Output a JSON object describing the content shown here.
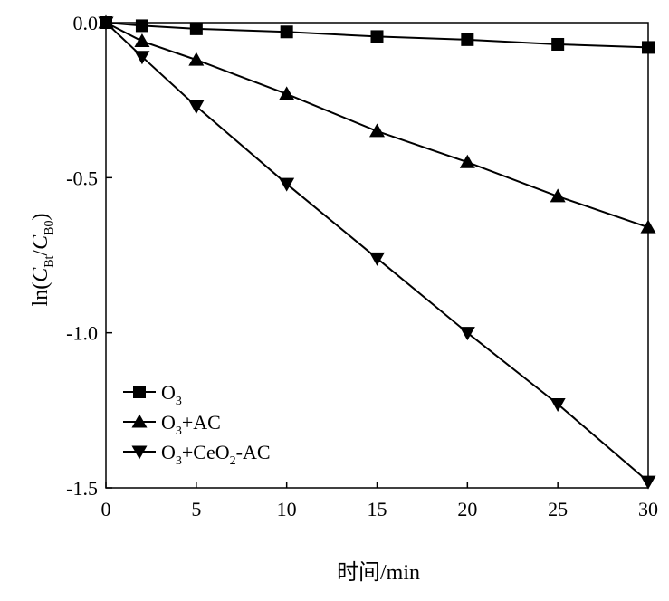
{
  "chart_data": {
    "type": "line",
    "xlabel": "时间/min",
    "ylabel": {
      "prefix": "ln(",
      "num_var": "C",
      "num_sub": "Bt",
      "slash": "/",
      "den_var": "C",
      "den_sub": "B0",
      "suffix": ")"
    },
    "xlim": [
      0,
      30
    ],
    "ylim": [
      -1.5,
      0.0
    ],
    "xticks": [
      0,
      5,
      10,
      15,
      20,
      25,
      30
    ],
    "xtick_labels": [
      "0",
      "5",
      "10",
      "15",
      "20",
      "25",
      "30"
    ],
    "yticks": [
      0.0,
      -0.5,
      -1.0,
      -1.5
    ],
    "ytick_labels": [
      "0.0",
      "-0.5",
      "-1.0",
      "-1.5"
    ],
    "grid": false,
    "legend_position": "bottom-left",
    "series": [
      {
        "name": "O3",
        "legend": {
          "base": "O",
          "sub": "3",
          "rest": ""
        },
        "marker": "square",
        "x": [
          0,
          2,
          5,
          10,
          15,
          20,
          25,
          30
        ],
        "y": [
          0.0,
          -0.01,
          -0.02,
          -0.03,
          -0.045,
          -0.055,
          -0.07,
          -0.08
        ]
      },
      {
        "name": "O3+AC",
        "legend": {
          "base": "O",
          "sub": "3",
          "rest": "+AC"
        },
        "marker": "triangle-up",
        "x": [
          0,
          2,
          5,
          10,
          15,
          20,
          25,
          30
        ],
        "y": [
          0.0,
          -0.06,
          -0.12,
          -0.23,
          -0.35,
          -0.45,
          -0.56,
          -0.66
        ]
      },
      {
        "name": "O3+CeO2-AC",
        "legend": {
          "base": "O",
          "sub": "3",
          "rest": "+CeO",
          "sub2": "2",
          "rest2": "-AC"
        },
        "marker": "triangle-down",
        "x": [
          0,
          2,
          5,
          10,
          15,
          20,
          25,
          30
        ],
        "y": [
          0.0,
          -0.11,
          -0.27,
          -0.52,
          -0.76,
          -1.0,
          -1.23,
          -1.48
        ]
      }
    ]
  }
}
